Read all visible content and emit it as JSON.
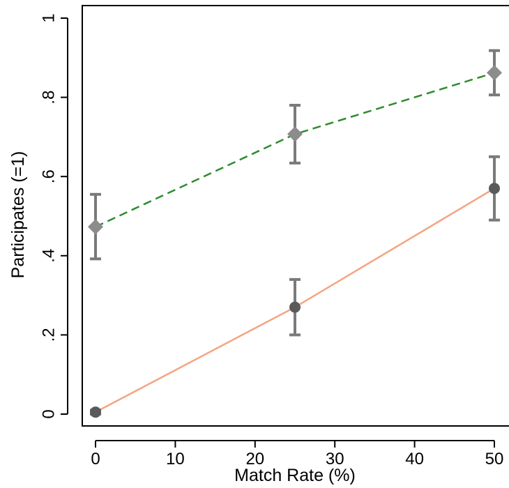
{
  "chart_data": {
    "type": "line",
    "title": "",
    "xlabel": "Match Rate (%)",
    "ylabel": "Participates (=1)",
    "xlim": [
      0,
      50
    ],
    "ylim": [
      0,
      1
    ],
    "xticks": [
      0,
      10,
      20,
      30,
      40,
      50
    ],
    "xtick_labels": [
      "0",
      "10",
      "20",
      "30",
      "40",
      "50"
    ],
    "yticks": [
      0,
      0.2,
      0.4,
      0.6,
      0.8,
      1
    ],
    "ytick_labels": [
      "0",
      ".2",
      ".4",
      ".6",
      ".8",
      "1"
    ],
    "grid": false,
    "legend": false,
    "series": [
      {
        "line_color": "#f4a582",
        "line_style": "solid",
        "marker": "circle",
        "marker_color": "#5a5a5a",
        "error_bar_color": "#7a7a7a",
        "x": [
          0,
          25,
          50
        ],
        "y": [
          0.005,
          0.27,
          0.57
        ],
        "ci_low": [
          0.0,
          0.2,
          0.49
        ],
        "ci_high": [
          0.01,
          0.34,
          0.65
        ]
      },
      {
        "line_color": "#2e8b2e",
        "line_style": "dashed",
        "marker": "diamond",
        "marker_color": "#8c8c8c",
        "error_bar_color": "#7a7a7a",
        "x": [
          0,
          25,
          50
        ],
        "y": [
          0.473,
          0.707,
          0.862
        ],
        "ci_low": [
          0.392,
          0.634,
          0.806
        ],
        "ci_high": [
          0.555,
          0.78,
          0.918
        ]
      }
    ]
  }
}
